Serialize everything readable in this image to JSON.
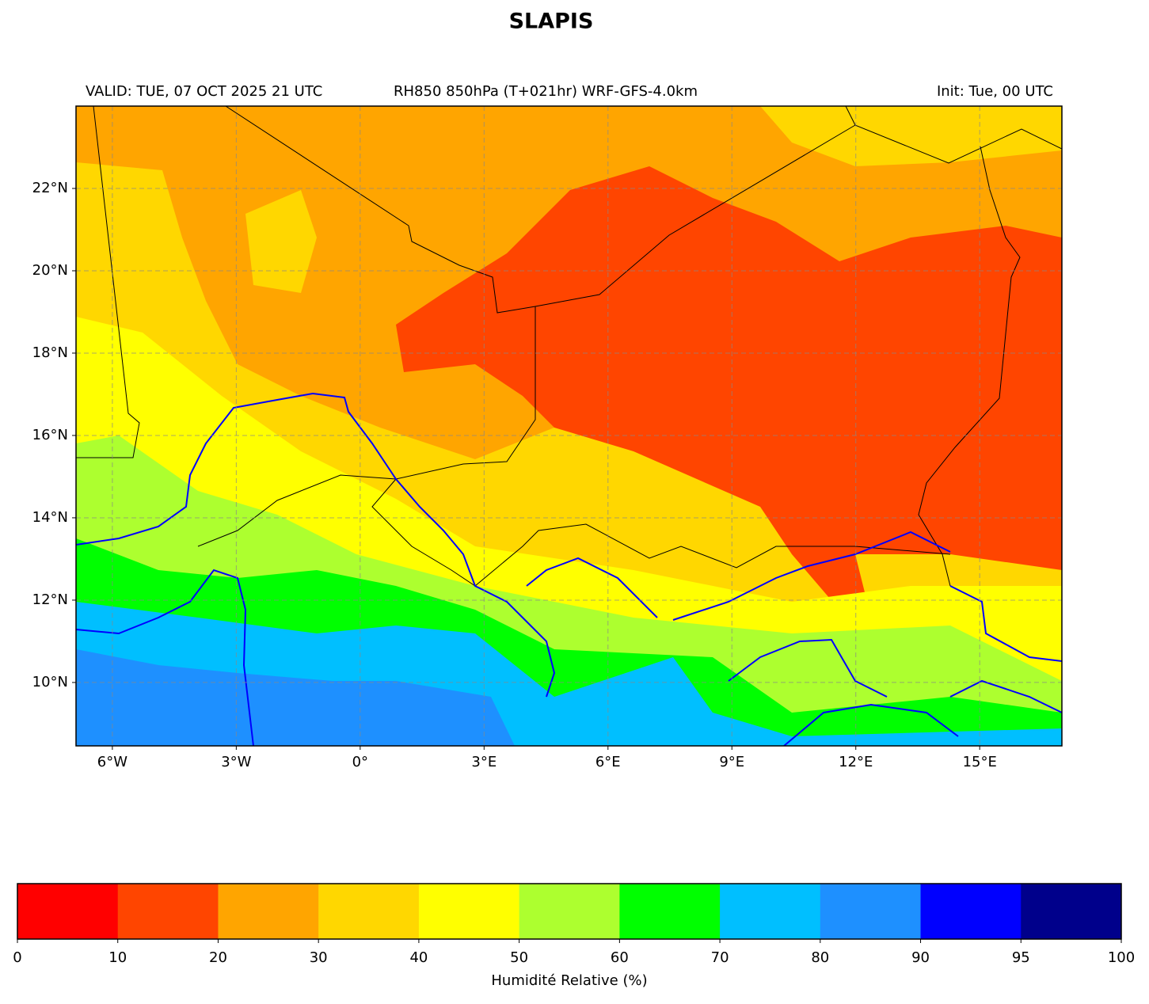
{
  "header": {
    "title": "SLAPIS",
    "valid": "VALID: TUE, 07 OCT 2025 21 UTC",
    "product": "RH850 850hPa (T+021hr) WRF-GFS-4.0km",
    "init": "Init: Tue, 00 UTC"
  },
  "map": {
    "lonlim": [
      -6.88,
      16.99
    ],
    "latlim": [
      8.46,
      24.0
    ],
    "xticks": [
      {
        "value": -6,
        "label": "6°W"
      },
      {
        "value": -3,
        "label": "3°W"
      },
      {
        "value": 0,
        "label": "0°"
      },
      {
        "value": 3,
        "label": "3°E"
      },
      {
        "value": 6,
        "label": "6°E"
      },
      {
        "value": 9,
        "label": "9°E"
      },
      {
        "value": 12,
        "label": "12°E"
      },
      {
        "value": 15,
        "label": "15°E"
      }
    ],
    "yticks": [
      {
        "value": 10,
        "label": "10°N"
      },
      {
        "value": 12,
        "label": "12°N"
      },
      {
        "value": 14,
        "label": "14°N"
      },
      {
        "value": 16,
        "label": "16°N"
      },
      {
        "value": 18,
        "label": "18°N"
      },
      {
        "value": 20,
        "label": "20°N"
      },
      {
        "value": 22,
        "label": "22°N"
      }
    ],
    "grid": true
  },
  "colorbar": {
    "label": "Humidité Relative (%)",
    "bounds": [
      0,
      10,
      20,
      30,
      40,
      50,
      60,
      70,
      80,
      90,
      95,
      100
    ],
    "colors": [
      "#ff0000",
      "#ff4500",
      "#ffa500",
      "#ffd700",
      "#ffff00",
      "#adff2f",
      "#00ff00",
      "#00bfff",
      "#1e90ff",
      "#0000ff",
      "#00008b"
    ]
  }
}
